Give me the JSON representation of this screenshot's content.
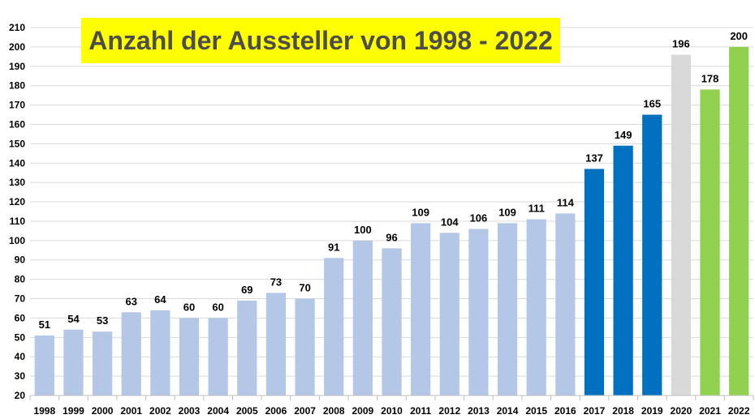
{
  "chart_data": {
    "type": "bar",
    "title": "Anzahl der Aussteller von 1998 - 2022",
    "xlabel": "",
    "ylabel": "",
    "ylim": [
      20,
      210
    ],
    "yticks": [
      20,
      30,
      40,
      50,
      60,
      70,
      80,
      90,
      100,
      110,
      120,
      130,
      140,
      150,
      160,
      170,
      180,
      190,
      200,
      210
    ],
    "grid": true,
    "categories": [
      "1998",
      "1999",
      "2000",
      "2001",
      "2002",
      "2003",
      "2004",
      "2005",
      "2006",
      "2007",
      "2008",
      "2009",
      "2010",
      "2011",
      "2012",
      "2013",
      "2014",
      "2015",
      "2016",
      "2017",
      "2018",
      "2019",
      "2020",
      "2021",
      "2022"
    ],
    "values": [
      51,
      54,
      53,
      63,
      64,
      60,
      60,
      69,
      73,
      70,
      91,
      100,
      96,
      109,
      104,
      106,
      109,
      111,
      114,
      137,
      149,
      165,
      196,
      178,
      200
    ],
    "bar_colors": [
      "#b4c7e7",
      "#b4c7e7",
      "#b4c7e7",
      "#b4c7e7",
      "#b4c7e7",
      "#b4c7e7",
      "#b4c7e7",
      "#b4c7e7",
      "#b4c7e7",
      "#b4c7e7",
      "#b4c7e7",
      "#b4c7e7",
      "#b4c7e7",
      "#b4c7e7",
      "#b4c7e7",
      "#b4c7e7",
      "#b4c7e7",
      "#b4c7e7",
      "#b4c7e7",
      "#0070c0",
      "#0070c0",
      "#0070c0",
      "#d9d9d9",
      "#92d050",
      "#92d050"
    ],
    "title_background": "#ffff00",
    "title_color": "#4d4d4d"
  }
}
